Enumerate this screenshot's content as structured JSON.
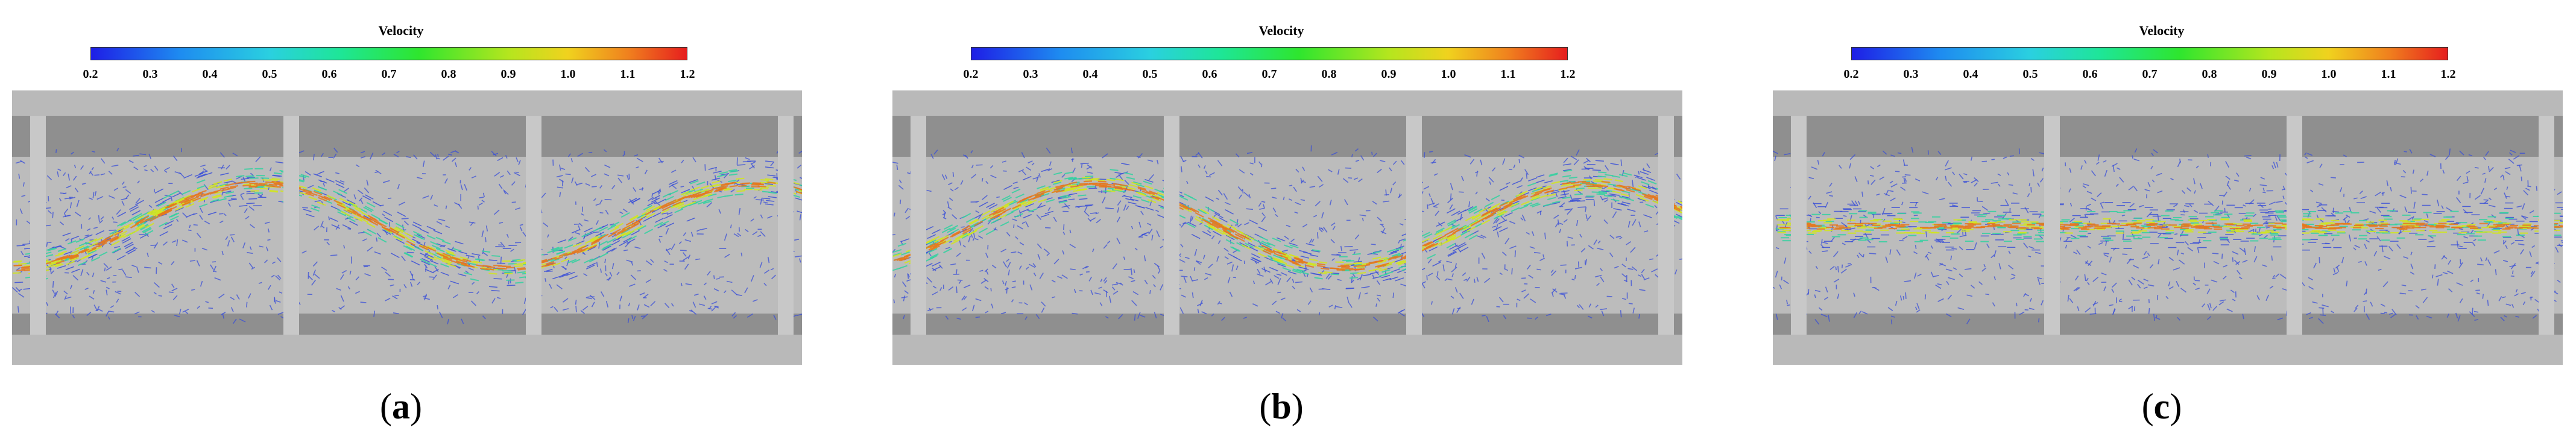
{
  "colorbar": {
    "title": "Velocity",
    "ticks": [
      "0.2",
      "0.3",
      "0.4",
      "0.5",
      "0.6",
      "0.7",
      "0.8",
      "0.9",
      "1.0",
      "1.1",
      "1.2"
    ]
  },
  "panels": [
    {
      "letter": "a",
      "flow": "wavy",
      "phase": 0
    },
    {
      "letter": "b",
      "flow": "wavy",
      "phase": 1
    },
    {
      "letter": "c",
      "flow": "straight",
      "phase": 0
    }
  ],
  "colors": {
    "outer_gray": "#b9b9b9",
    "channel_dark": "#8f8f8f",
    "channel_light": "#bcbcbc",
    "baffle": "#c8c8c8",
    "low_velocity": "#3a4fd8",
    "mid_velocity": "#32d2a0",
    "high_velocity": "#d2e61e",
    "peak_velocity": "#e6781e"
  }
}
